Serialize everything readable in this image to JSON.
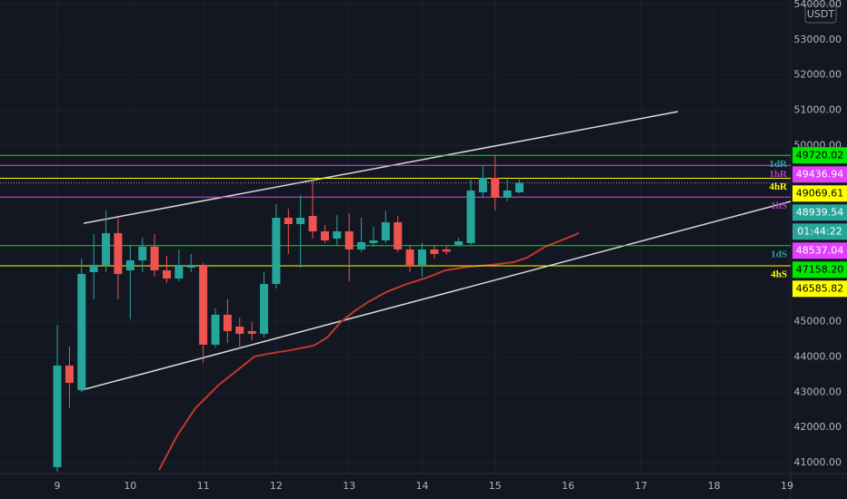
{
  "chart_data": {
    "type": "candlestick",
    "currency": "USDT",
    "x": [
      9,
      9.167,
      9.333,
      9.5,
      9.667,
      9.833,
      10,
      10.167,
      10.333,
      10.5,
      10.667,
      10.833,
      11,
      11.167,
      11.333,
      11.5,
      11.667,
      11.833,
      12,
      12.167,
      12.333,
      12.5,
      12.667,
      12.833,
      13,
      13.167,
      13.333,
      13.5,
      13.667,
      13.833,
      14,
      14.167,
      14.333,
      14.5,
      14.667,
      14.833,
      15,
      15.167,
      15.333
    ],
    "open": [
      40873,
      43756,
      43061,
      46407,
      46613,
      47514,
      46458,
      46742,
      47128,
      46458,
      46227,
      46536,
      46613,
      44348,
      45198,
      44863,
      44734,
      44657,
      46073,
      47951,
      47771,
      48003,
      47565,
      47359,
      47565,
      47051,
      47231,
      47308,
      47823,
      47051,
      46613,
      47051,
      47051,
      47179,
      47231,
      48672,
      49084,
      48518,
      48672
    ],
    "high": [
      44914,
      44296,
      46793,
      47488,
      48157,
      47951,
      47179,
      47385,
      47488,
      46871,
      47051,
      46922,
      46664,
      45378,
      45635,
      45120,
      44991,
      46407,
      48338,
      48209,
      48595,
      48981,
      47746,
      48029,
      48080,
      47951,
      47694,
      48157,
      48003,
      47179,
      47231,
      47179,
      47150,
      47385,
      49033,
      49419,
      49702,
      49033,
      49033
    ],
    "low": [
      40744,
      42546,
      43009,
      45635,
      46407,
      45635,
      45069,
      46407,
      46278,
      46098,
      46150,
      46407,
      43833,
      44271,
      44400,
      44220,
      44477,
      44554,
      45944,
      46922,
      46536,
      47359,
      47231,
      47179,
      46150,
      46973,
      47128,
      47231,
      46973,
      46407,
      46278,
      46793,
      46900,
      47128,
      47179,
      48518,
      48157,
      48415,
      48646
    ],
    "close": [
      43756,
      43267,
      46355,
      46613,
      47514,
      46355,
      46742,
      47128,
      46458,
      46227,
      46613,
      46613,
      44348,
      45198,
      44734,
      44657,
      44657,
      46073,
      47951,
      47771,
      47951,
      47565,
      47308,
      47565,
      47051,
      47256,
      47308,
      47823,
      47051,
      46613,
      47051,
      46922,
      46990,
      47282,
      48724,
      49084,
      48518,
      48724,
      48939.54
    ],
    "up_color": "#26a69a",
    "down_color": "#ef5350",
    "xlim": [
      8.215,
      19.05
    ],
    "xticks": [
      9,
      10,
      11,
      12,
      13,
      14,
      15,
      16,
      17,
      18,
      19
    ],
    "ylim": [
      40690,
      54130
    ],
    "yticks": [
      {
        "value": 41000,
        "label": "41000.00"
      },
      {
        "value": 42000,
        "label": "42000.00"
      },
      {
        "value": 43000,
        "label": "43000.00"
      },
      {
        "value": 44000,
        "label": "44000.00"
      },
      {
        "value": 45000,
        "label": "45000.00"
      },
      {
        "value": 50000,
        "label": "50000.00"
      },
      {
        "value": 51000,
        "label": "51000.00"
      },
      {
        "value": 52000,
        "label": "52000.00"
      },
      {
        "value": 53000,
        "label": "53000.00"
      },
      {
        "value": 54000,
        "label": "54000.00"
      }
    ],
    "grid": true,
    "moving_average": {
      "color": "#c0392b",
      "x": [
        10.395,
        10.644,
        10.893,
        11.204,
        11.516,
        11.702,
        11.889,
        12.2,
        12.512,
        12.699,
        12.885,
        13.072,
        13.259,
        13.508,
        13.757,
        14.068,
        14.318,
        14.629,
        14.94,
        15.252,
        15.438,
        15.687,
        15.936,
        16.148
      ],
      "values": [
        40796,
        41774,
        42546,
        43190,
        43704,
        44013,
        44090,
        44193,
        44322,
        44554,
        44991,
        45300,
        45558,
        45841,
        46047,
        46253,
        46458,
        46561,
        46613,
        46690,
        46819,
        47128,
        47334,
        47514
      ]
    },
    "trend_lines": [
      {
        "color": "#d8d8d8",
        "x": [
          9.361,
          17.506
        ],
        "values": [
          47793,
          50963
        ]
      },
      {
        "color": "#d8d8d8",
        "x": [
          9.336,
          19.05
        ],
        "values": [
          43061,
          48415
        ]
      }
    ],
    "levels": [
      {
        "label": "1dR",
        "value": 49720.02,
        "value_label": "49720.02",
        "color": "#00e600",
        "text_color": "#26a69a",
        "box_text": "#000000"
      },
      {
        "label": "1hR",
        "value": 49436.94,
        "value_label": "49436.94",
        "color": "#e040fb",
        "text_color": "#b040c0",
        "box_text": "#ffffff"
      },
      {
        "label": "4hR",
        "value": 49069.61,
        "value_label": "49069.61",
        "color": "#ffff00",
        "text_color": "#ffff00",
        "box_text": "#000000"
      },
      {
        "label": "1hS",
        "value": 48537.04,
        "value_label": "48537.04",
        "color": "#e040fb",
        "text_color": "#b040c0",
        "box_text": "#ffffff"
      },
      {
        "label": "1dS",
        "value": 47158.2,
        "value_label": "47158.20",
        "color": "#00e600",
        "text_color": "#26a69a",
        "box_text": "#000000"
      },
      {
        "label": "4hS",
        "value": 46585.82,
        "value_label": "46585.82",
        "color": "#ffff00",
        "text_color": "#ffff00",
        "box_text": "#000000"
      }
    ],
    "current_price": {
      "value": 48939.54,
      "label": "48939.54",
      "countdown": "01:44:22",
      "color": "#26a69a"
    }
  }
}
